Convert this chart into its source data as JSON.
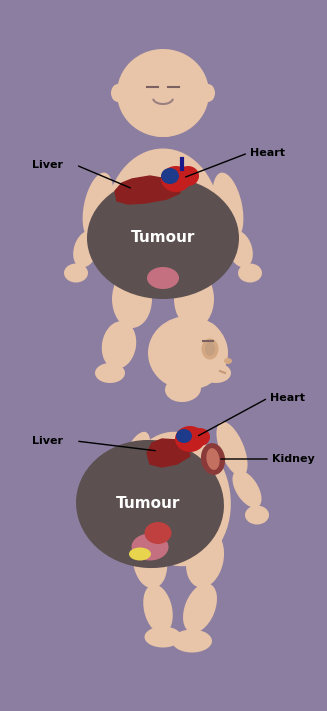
{
  "background_color": "#8B7EA0",
  "skin_color": "#E8C4A8",
  "skin_shadow": "#D4A882",
  "tumour_color": "#5C5050",
  "liver_color": "#8B2020",
  "heart_color_main": "#C41E1E",
  "heart_color_dark": "#8B0000",
  "heart_color_blue": "#1E3A8A",
  "kidney_color": "#8B3A3A",
  "yellow_color": "#E8D44D",
  "text_color": "#000000",
  "white_color": "#FFFFFF",
  "label_heart1": "Heart",
  "label_liver1": "Liver",
  "label_tumour1": "Tumour",
  "label_heart2": "Heart",
  "label_liver2": "Liver",
  "label_tumour2": "Tumour",
  "label_kidney2": "Kidney",
  "fig_width": 3.27,
  "fig_height": 7.11,
  "dpi": 100
}
